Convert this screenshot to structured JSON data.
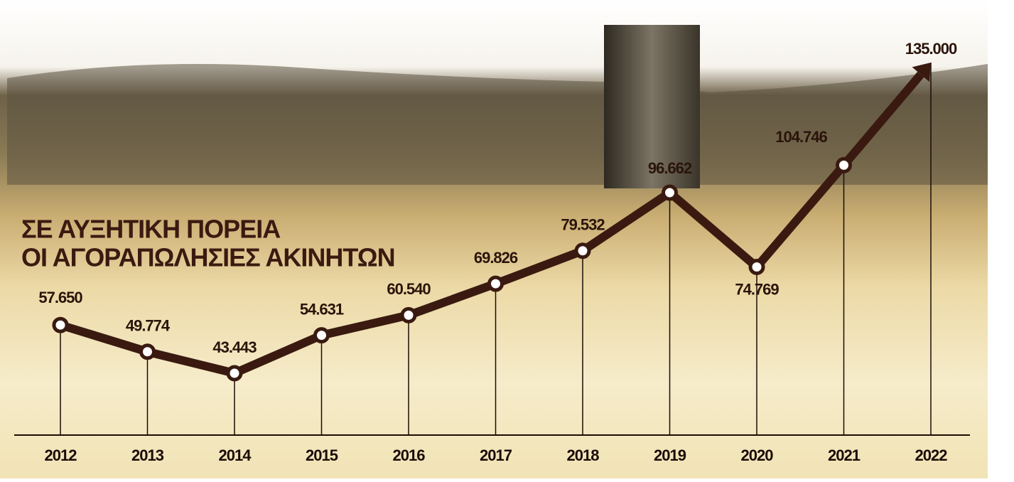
{
  "chart_data": {
    "type": "line",
    "title": "ΣΕ ΑΥΞΗΤΙΚΗ ΠΟΡΕΙΑ",
    "subtitle": "ΟΙ ΑΓΟΡΑΠΩΛΗΣΙΕΣ ΑΚΙΝΗΤΩΝ",
    "categories": [
      "2012",
      "2013",
      "2014",
      "2015",
      "2016",
      "2017",
      "2018",
      "2019",
      "2020",
      "2021",
      "2022"
    ],
    "values": [
      57650,
      49774,
      43443,
      54631,
      60540,
      69826,
      79532,
      96662,
      74769,
      104746,
      135000
    ],
    "value_labels": [
      "57.650",
      "49.774",
      "43.443",
      "54.631",
      "60.540",
      "69.826",
      "79.532",
      "96.662",
      "74.769",
      "104.746",
      "135.000"
    ],
    "color": "#3a1a10"
  }
}
